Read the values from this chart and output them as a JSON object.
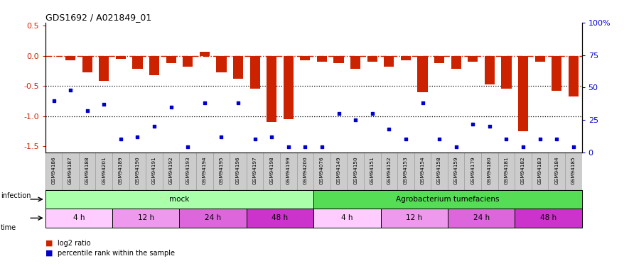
{
  "title": "GDS1692 / A021849_01",
  "samples": [
    "GSM94186",
    "GSM94187",
    "GSM94188",
    "GSM94201",
    "GSM94189",
    "GSM94190",
    "GSM94191",
    "GSM94192",
    "GSM94193",
    "GSM94194",
    "GSM94195",
    "GSM94196",
    "GSM94197",
    "GSM94198",
    "GSM94199",
    "GSM94200",
    "GSM94076",
    "GSM94149",
    "GSM94150",
    "GSM94151",
    "GSM94152",
    "GSM94153",
    "GSM94154",
    "GSM94158",
    "GSM94159",
    "GSM94179",
    "GSM94180",
    "GSM94181",
    "GSM94182",
    "GSM94183",
    "GSM94184",
    "GSM94185"
  ],
  "log2_ratio": [
    0.0,
    -0.07,
    -0.28,
    -0.42,
    -0.05,
    -0.22,
    -0.32,
    -0.12,
    -0.18,
    0.07,
    -0.28,
    -0.38,
    -0.55,
    -1.1,
    -1.05,
    -0.08,
    -0.1,
    -0.12,
    -0.22,
    -0.1,
    -0.18,
    -0.08,
    -0.6,
    -0.12,
    -0.22,
    -0.1,
    -0.48,
    -0.55,
    -1.25,
    -0.1,
    -0.58,
    -0.68
  ],
  "percentile_rank_pct": [
    40,
    48,
    32,
    37,
    10,
    12,
    20,
    35,
    4,
    38,
    12,
    38,
    10,
    12,
    4,
    4,
    4,
    30,
    25,
    30,
    18,
    10,
    38,
    10,
    4,
    22,
    20,
    10,
    4,
    10,
    10,
    4
  ],
  "bar_color": "#cc2200",
  "dot_color": "#0000cc",
  "ylim": [
    -1.6,
    0.55
  ],
  "y_ticks_left": [
    0.5,
    0.0,
    -0.5,
    -1.0,
    -1.5
  ],
  "y_ticks_right": [
    100,
    75,
    50,
    25,
    0
  ],
  "dotted_lines": [
    -0.5,
    -1.0
  ],
  "infection_groups": [
    {
      "label": "mock",
      "start": 0,
      "end": 15,
      "color": "#aaffaa"
    },
    {
      "label": "Agrobacterium tumefaciens",
      "start": 16,
      "end": 31,
      "color": "#55dd55"
    }
  ],
  "time_groups": [
    {
      "label": "4 h",
      "start": 0,
      "end": 3,
      "color": "#ffccff"
    },
    {
      "label": "12 h",
      "start": 4,
      "end": 7,
      "color": "#ee99ee"
    },
    {
      "label": "24 h",
      "start": 8,
      "end": 11,
      "color": "#dd66dd"
    },
    {
      "label": "48 h",
      "start": 12,
      "end": 15,
      "color": "#cc33cc"
    },
    {
      "label": "4 h",
      "start": 16,
      "end": 19,
      "color": "#ffccff"
    },
    {
      "label": "12 h",
      "start": 20,
      "end": 23,
      "color": "#ee99ee"
    },
    {
      "label": "24 h",
      "start": 24,
      "end": 27,
      "color": "#dd66dd"
    },
    {
      "label": "48 h",
      "start": 28,
      "end": 31,
      "color": "#cc33cc"
    }
  ]
}
